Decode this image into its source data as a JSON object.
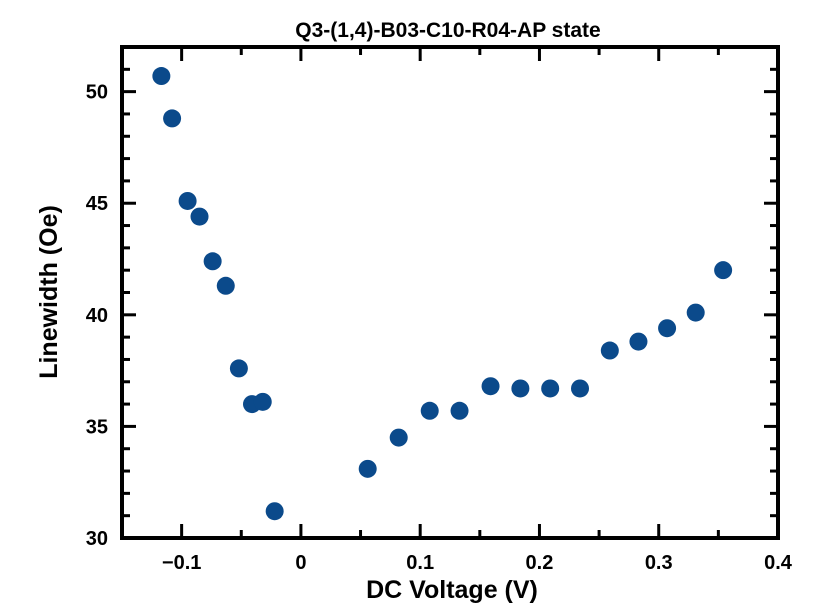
{
  "chart_data": {
    "type": "scatter",
    "title": "Q3-(1,4)-B03-C10-R04-AP state",
    "xlabel": "DC Voltage (V)",
    "ylabel": "Linewidth (Oe)",
    "xlim": [
      -0.15,
      0.4
    ],
    "ylim": [
      30,
      52
    ],
    "x_ticks": [
      -0.1,
      0,
      0.1,
      0.2,
      0.3,
      0.4
    ],
    "x_tick_labels": [
      "−0.1",
      "0",
      "0.1",
      "0.2",
      "0.3",
      "0.4"
    ],
    "y_ticks": [
      30,
      35,
      40,
      45,
      50
    ],
    "y_tick_labels": [
      "30",
      "35",
      "40",
      "45",
      "50"
    ],
    "grid": false,
    "marker_color": "#0b4a8b",
    "points": [
      {
        "x": -0.117,
        "y": 50.7
      },
      {
        "x": -0.108,
        "y": 48.8
      },
      {
        "x": -0.095,
        "y": 45.1
      },
      {
        "x": -0.085,
        "y": 44.4
      },
      {
        "x": -0.074,
        "y": 42.4
      },
      {
        "x": -0.063,
        "y": 41.3
      },
      {
        "x": -0.052,
        "y": 37.6
      },
      {
        "x": -0.041,
        "y": 36.0
      },
      {
        "x": -0.032,
        "y": 36.1
      },
      {
        "x": -0.022,
        "y": 31.2
      },
      {
        "x": 0.056,
        "y": 33.1
      },
      {
        "x": 0.082,
        "y": 34.5
      },
      {
        "x": 0.108,
        "y": 35.7
      },
      {
        "x": 0.133,
        "y": 35.7
      },
      {
        "x": 0.159,
        "y": 36.8
      },
      {
        "x": 0.184,
        "y": 36.7
      },
      {
        "x": 0.209,
        "y": 36.7
      },
      {
        "x": 0.234,
        "y": 36.7
      },
      {
        "x": 0.259,
        "y": 38.4
      },
      {
        "x": 0.283,
        "y": 38.8
      },
      {
        "x": 0.307,
        "y": 39.4
      },
      {
        "x": 0.331,
        "y": 40.1
      },
      {
        "x": 0.354,
        "y": 42.0
      }
    ]
  }
}
